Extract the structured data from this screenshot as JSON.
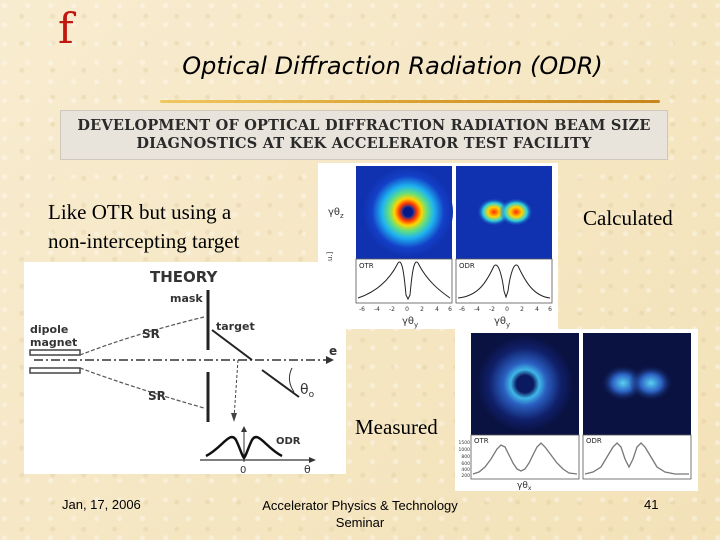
{
  "slide": {
    "logo": "f",
    "title": "Optical Diffraction Radiation (ODR)",
    "banner_line1": "DEVELOPMENT OF OPTICAL DIFFRACTION RADIATION BEAM SIZE",
    "banner_line2": "DIAGNOSTICS AT KEK ACCELERATOR TEST FACILITY",
    "intro_line1": "Like OTR but using a",
    "intro_line2": "non-intercepting target",
    "calculated": "Calculated",
    "measured": "Measured"
  },
  "theory": {
    "heading": "THEORY",
    "mask": "mask",
    "target": "target",
    "dipole": "dipole",
    "magnet": "magnet",
    "sr_top": "SR",
    "sr_bottom": "SR",
    "beam": "e",
    "angle": "θ",
    "angle_sub": "o",
    "odr": "ODR",
    "zero": "0",
    "theta": "θ"
  },
  "calc_plot": {
    "ylabel_top": "γθ",
    "ylabel_top_sub": "z",
    "ylabel_bottom": "Intensity [a.u.]",
    "otr": "OTR",
    "odr": "ODR",
    "x_left": "γθ",
    "x_right": "γθ",
    "x_sub": "y",
    "ticks": [
      "-6",
      "-4",
      "-2",
      "0",
      "2",
      "4",
      "6"
    ]
  },
  "meas_plot": {
    "otr": "OTR",
    "odr": "ODR",
    "xlabel": "γθ",
    "xlabel_sub": "x",
    "yticks": [
      "1500",
      "1000",
      "800",
      "600",
      "400",
      "200"
    ]
  },
  "footer": {
    "date": "Jan, 17, 2006",
    "seminar_line1": "Accelerator Physics & Technology",
    "seminar_line2": "Seminar",
    "page": "41"
  }
}
